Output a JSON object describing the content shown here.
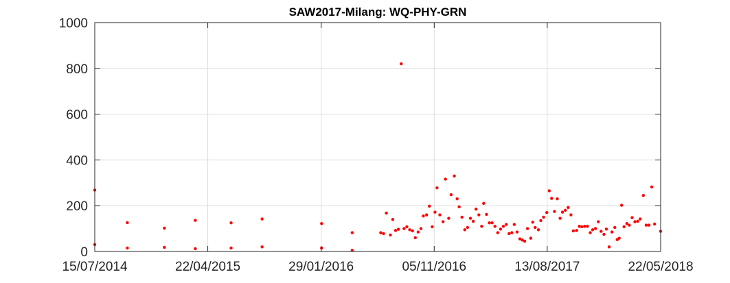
{
  "chart_data": {
    "type": "scatter",
    "title": "SAW2017-Milang: WQ-PHY-GRN",
    "xlabel": "",
    "ylabel": "",
    "x_axis_type": "date",
    "xlim": [
      "2014-07-15",
      "2018-05-22"
    ],
    "ylim": [
      0,
      1000
    ],
    "x_ticks": [
      "15/07/2014",
      "22/04/2015",
      "29/01/2016",
      "05/11/2016",
      "13/08/2017",
      "22/05/2018"
    ],
    "y_ticks": [
      "0",
      "200",
      "400",
      "600",
      "800",
      "1000"
    ],
    "grid": true,
    "marker_color": "#ff0000",
    "series": [
      {
        "points": [
          [
            "2014-07-15",
            268
          ],
          [
            "2014-07-15",
            30
          ],
          [
            "2014-10-04",
            126
          ],
          [
            "2014-10-04",
            15
          ],
          [
            "2015-01-04",
            102
          ],
          [
            "2015-01-04",
            18
          ],
          [
            "2015-03-22",
            136
          ],
          [
            "2015-03-22",
            12
          ],
          [
            "2015-06-19",
            125
          ],
          [
            "2015-06-19",
            15
          ],
          [
            "2015-09-04",
            142
          ],
          [
            "2015-09-04",
            20
          ],
          [
            "2016-01-30",
            122
          ],
          [
            "2016-01-30",
            15
          ],
          [
            "2016-04-15",
            82
          ],
          [
            "2016-04-15",
            5
          ],
          [
            "2016-06-25",
            82
          ],
          [
            "2016-07-02",
            78
          ],
          [
            "2016-07-09",
            168
          ],
          [
            "2016-07-19",
            72
          ],
          [
            "2016-07-25",
            140
          ],
          [
            "2016-08-01",
            92
          ],
          [
            "2016-08-08",
            97
          ],
          [
            "2016-08-15",
            820
          ],
          [
            "2016-08-22",
            100
          ],
          [
            "2016-08-29",
            108
          ],
          [
            "2016-09-05",
            95
          ],
          [
            "2016-09-12",
            90
          ],
          [
            "2016-09-19",
            60
          ],
          [
            "2016-09-26",
            85
          ],
          [
            "2016-10-03",
            100
          ],
          [
            "2016-10-09",
            155
          ],
          [
            "2016-10-17",
            160
          ],
          [
            "2016-10-24",
            198
          ],
          [
            "2016-10-31",
            108
          ],
          [
            "2016-11-07",
            172
          ],
          [
            "2016-11-12",
            278
          ],
          [
            "2016-11-19",
            160
          ],
          [
            "2016-11-27",
            130
          ],
          [
            "2016-12-03",
            316
          ],
          [
            "2016-12-11",
            145
          ],
          [
            "2016-12-17",
            248
          ],
          [
            "2016-12-25",
            330
          ],
          [
            "2017-01-01",
            230
          ],
          [
            "2017-01-06",
            195
          ],
          [
            "2017-01-13",
            150
          ],
          [
            "2017-01-20",
            95
          ],
          [
            "2017-01-27",
            105
          ],
          [
            "2017-02-03",
            145
          ],
          [
            "2017-02-10",
            132
          ],
          [
            "2017-02-17",
            185
          ],
          [
            "2017-02-24",
            160
          ],
          [
            "2017-03-03",
            110
          ],
          [
            "2017-03-08",
            210
          ],
          [
            "2017-03-15",
            162
          ],
          [
            "2017-03-22",
            125
          ],
          [
            "2017-03-29",
            125
          ],
          [
            "2017-04-05",
            110
          ],
          [
            "2017-04-12",
            82
          ],
          [
            "2017-04-19",
            98
          ],
          [
            "2017-04-26",
            110
          ],
          [
            "2017-05-03",
            118
          ],
          [
            "2017-05-10",
            78
          ],
          [
            "2017-05-17",
            82
          ],
          [
            "2017-05-23",
            118
          ],
          [
            "2017-05-30",
            85
          ],
          [
            "2017-06-06",
            55
          ],
          [
            "2017-06-12",
            50
          ],
          [
            "2017-06-18",
            45
          ],
          [
            "2017-06-25",
            100
          ],
          [
            "2017-07-03",
            58
          ],
          [
            "2017-07-08",
            128
          ],
          [
            "2017-07-14",
            105
          ],
          [
            "2017-07-22",
            95
          ],
          [
            "2017-07-28",
            135
          ],
          [
            "2017-08-04",
            150
          ],
          [
            "2017-08-12",
            170
          ],
          [
            "2017-08-18",
            265
          ],
          [
            "2017-08-24",
            232
          ],
          [
            "2017-08-31",
            175
          ],
          [
            "2017-09-07",
            230
          ],
          [
            "2017-09-14",
            145
          ],
          [
            "2017-09-20",
            172
          ],
          [
            "2017-09-27",
            180
          ],
          [
            "2017-10-04",
            192
          ],
          [
            "2017-10-11",
            160
          ],
          [
            "2017-10-17",
            90
          ],
          [
            "2017-10-25",
            92
          ],
          [
            "2017-11-01",
            110
          ],
          [
            "2017-11-07",
            108
          ],
          [
            "2017-11-14",
            110
          ],
          [
            "2017-11-21",
            110
          ],
          [
            "2017-11-28",
            82
          ],
          [
            "2017-12-04",
            95
          ],
          [
            "2017-12-11",
            100
          ],
          [
            "2017-12-18",
            130
          ],
          [
            "2017-12-25",
            88
          ],
          [
            "2018-01-01",
            75
          ],
          [
            "2018-01-07",
            98
          ],
          [
            "2018-01-14",
            20
          ],
          [
            "2018-01-21",
            85
          ],
          [
            "2018-01-28",
            105
          ],
          [
            "2018-02-03",
            52
          ],
          [
            "2018-02-08",
            58
          ],
          [
            "2018-02-14",
            202
          ],
          [
            "2018-02-20",
            108
          ],
          [
            "2018-02-27",
            122
          ],
          [
            "2018-03-05",
            115
          ],
          [
            "2018-03-12",
            148
          ],
          [
            "2018-03-19",
            130
          ],
          [
            "2018-03-26",
            132
          ],
          [
            "2018-04-01",
            142
          ],
          [
            "2018-04-09",
            245
          ],
          [
            "2018-04-16",
            115
          ],
          [
            "2018-04-23",
            115
          ],
          [
            "2018-04-30",
            282
          ],
          [
            "2018-05-07",
            120
          ],
          [
            "2018-05-22",
            88
          ]
        ]
      }
    ]
  }
}
